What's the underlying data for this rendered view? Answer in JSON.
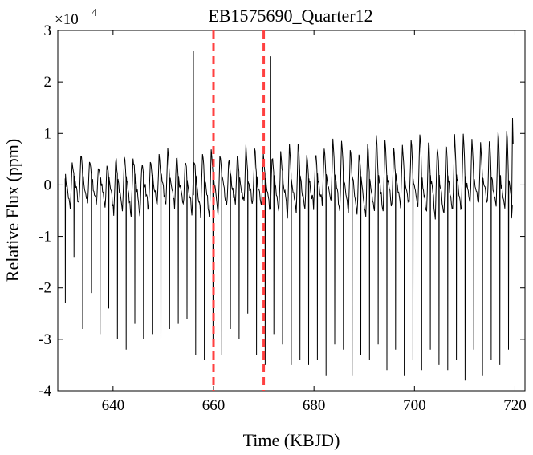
{
  "chart_data": {
    "type": "line",
    "title": "EB1575690_Quarter12",
    "xlabel": "Time (KBJD)",
    "ylabel": "Relative Flux (ppm)",
    "y_exponent_label": "×10",
    "y_exponent_power": "4",
    "xlim": [
      629,
      722
    ],
    "ylim": [
      -40000,
      30000
    ],
    "x_ticks": [
      640,
      660,
      680,
      700,
      720
    ],
    "x_tick_labels": [
      "640",
      "660",
      "680",
      "700",
      "720"
    ],
    "y_ticks": [
      -40000,
      -30000,
      -20000,
      -10000,
      0,
      10000,
      20000,
      30000
    ],
    "y_tick_labels": [
      "-4",
      "-3",
      "-2",
      "-1",
      "0",
      "1",
      "2",
      "3"
    ],
    "grid": false,
    "eclipses": {
      "t0": 630.5,
      "period": 1.73,
      "count": 52,
      "depths": [
        -23000,
        -14000,
        -28000,
        -21000,
        -29000,
        -24000,
        -30000,
        -32000,
        -27000,
        -30000,
        -29000,
        -30000,
        -28000,
        -27000,
        -26000,
        -33000,
        -34000,
        -31000,
        -33000,
        -28000,
        -30000,
        -25000,
        -33000,
        -35000,
        -29000,
        -31000,
        -35000,
        -34000,
        -35000,
        -34000,
        -37000,
        -31000,
        -32000,
        -37000,
        -33000,
        -34000,
        -31000,
        -36000,
        -32000,
        -37000,
        -34000,
        -36000,
        -32000,
        -35000,
        -36000,
        -34000,
        -38000,
        -32000,
        -37000,
        -34000,
        -35000,
        -32000
      ]
    },
    "pulse": {
      "peak_start": 4500,
      "peak_end": 10500,
      "trough": -5000
    },
    "spikes": [
      {
        "x": 656.0,
        "y": 26000
      },
      {
        "x": 671.3,
        "y": 25000
      }
    ],
    "series": [
      {
        "color": "#000000"
      }
    ],
    "vlines": [
      {
        "x": 660,
        "color": "#ff4040",
        "style": "dashed"
      },
      {
        "x": 670,
        "color": "#ff4040",
        "style": "dashed"
      }
    ]
  }
}
